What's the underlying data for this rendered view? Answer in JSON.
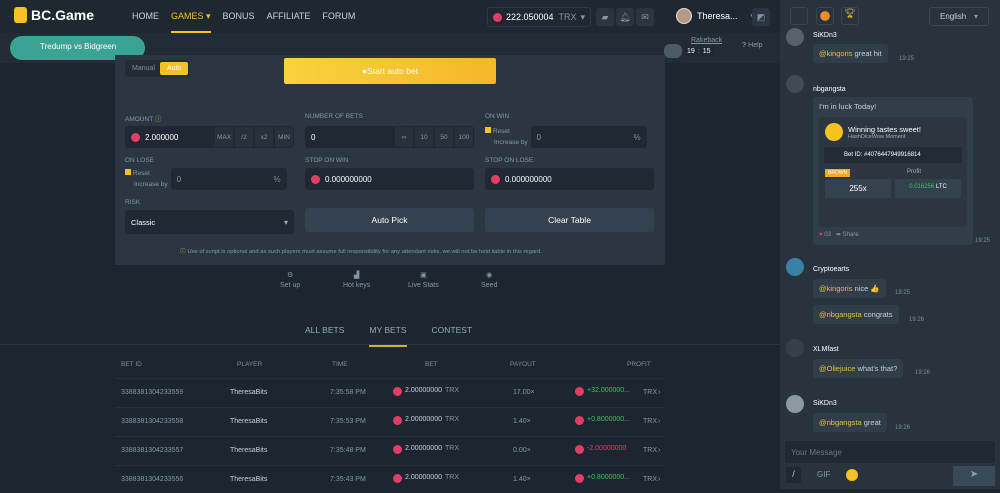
{
  "header": {
    "logo": "BC.Game",
    "nav": [
      "HOME",
      "GAMES",
      "BONUS",
      "AFFILIATE",
      "FORUM"
    ],
    "active_nav": "GAMES",
    "balance": "222.050004",
    "currency": "TRX",
    "username": "Theresa...",
    "banner": "Tredump vs Bidgreen"
  },
  "rakeback": {
    "label": "Rakeback",
    "hours": "19",
    "minutes": "15",
    "help": "Help"
  },
  "panel": {
    "mode_tabs": [
      "Manual",
      "Auto"
    ],
    "active_mode": "Auto",
    "start_button": "Start auto bet",
    "amount": {
      "label": "AMOUNT",
      "value": "2.000000",
      "buttons": [
        "MAX",
        "/2",
        "x2",
        "MIN"
      ]
    },
    "number_of_bets": {
      "label": "NUMBER OF BETS",
      "value": "0",
      "buttons": [
        "∞",
        "10",
        "50",
        "100"
      ]
    },
    "on_win": {
      "label": "ON WIN",
      "reset": "Reset",
      "increase": "Increase by",
      "value": "0",
      "unit": "%"
    },
    "on_lose": {
      "label": "ON LOSE",
      "reset": "Reset",
      "increase": "Increase by",
      "value": "0",
      "unit": "%"
    },
    "stop_on_win": {
      "label": "STOP ON WIN",
      "value": "0.000000000"
    },
    "stop_on_lose": {
      "label": "STOP ON LOSE",
      "value": "0.000000000"
    },
    "risk": {
      "label": "RISK",
      "value": "Classic"
    },
    "auto_pick": "Auto Pick",
    "clear_table": "Clear Table",
    "disclaimer": "Use of script is optional and as such players must assume full responsibility for any attendant risks. we will not be held liable in this regard."
  },
  "footer_tools": [
    "Set up",
    "Hot keys",
    "Live Stats",
    "Seed"
  ],
  "bets": {
    "tabs": [
      "ALL BETS",
      "MY BETS",
      "CONTEST"
    ],
    "active_tab": "MY BETS",
    "columns": [
      "BET ID",
      "PLAYER",
      "TIME",
      "BET",
      "PAYOUT",
      "PROFIT"
    ],
    "rows": [
      {
        "id": "3388381304233559",
        "player": "TheresaBits",
        "time": "7:35:58 PM",
        "bet": "2.00000000",
        "currency": "TRX",
        "payout": "17.00×",
        "profit": "+32.000000...",
        "positive": true
      },
      {
        "id": "3388381304233558",
        "player": "TheresaBits",
        "time": "7:35:53 PM",
        "bet": "2.00000000",
        "currency": "TRX",
        "payout": "1.40×",
        "profit": "+0.8000000...",
        "positive": true
      },
      {
        "id": "3388381304233557",
        "player": "TheresaBits",
        "time": "7:35:48 PM",
        "bet": "2.00000000",
        "currency": "TRX",
        "payout": "0.00×",
        "profit": "-2.00000000",
        "positive": false
      },
      {
        "id": "3388381304233556",
        "player": "TheresaBits",
        "time": "7:35:43 PM",
        "bet": "2.00000000",
        "currency": "TRX",
        "payout": "1.40×",
        "profit": "+0.8000000...",
        "positive": true
      }
    ]
  },
  "chat": {
    "language": "English",
    "messages": [
      {
        "user": "SiKDn3",
        "mention": "@kingoris",
        "text": " great hit",
        "time": "19:25"
      },
      {
        "user": "nbgangsta",
        "text": "I'm in luck Today!",
        "card": {
          "title": "Winning tastes sweet!",
          "subtitle": "HashDiceWow Moment",
          "bet_id": "Bet ID: #4076447949916814",
          "badge": "BROWN",
          "multiplier": "255x",
          "profit_label": "Profit",
          "profit": "0.016256",
          "profit_currency": "LTC",
          "likes": "03",
          "share": "Share"
        },
        "time": "19:25"
      },
      {
        "user": "Cryptoearts",
        "mention": "@kingoris",
        "text": " nice 👍",
        "time": "19:25"
      },
      {
        "mention": "@nbgangsta",
        "text": " congrats",
        "time": "19:26"
      },
      {
        "user": "XLMfast",
        "mention": "@Oliejuice",
        "text": " what's that?",
        "time": "19:26"
      },
      {
        "user": "SiKDn3",
        "mention": "@nbgangsta",
        "text": " great",
        "time": "19:26"
      }
    ],
    "input_placeholder": "Your Message",
    "gif": "GIF",
    "command": "/"
  },
  "colors": {
    "accent": "#f5c220",
    "win": "#3fc35a",
    "loss": "#e43d63"
  }
}
